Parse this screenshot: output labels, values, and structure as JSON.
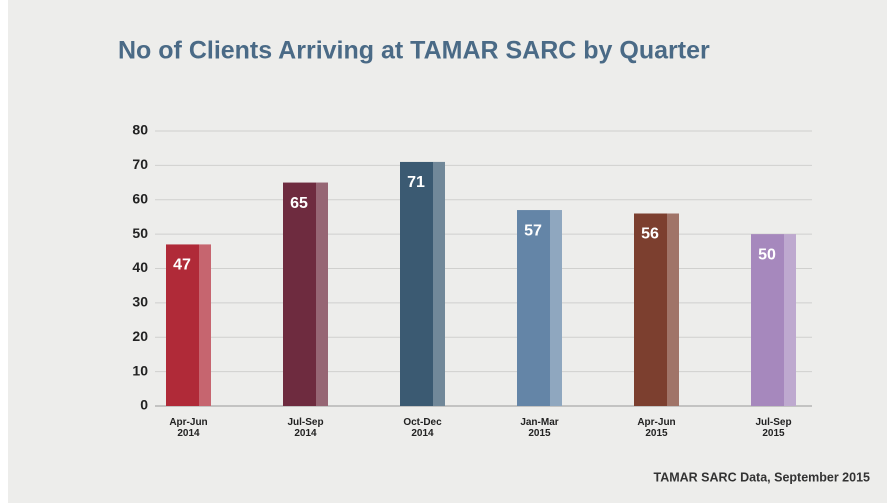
{
  "chart_data": {
    "type": "bar",
    "title": "No of Clients Arriving at TAMAR SARC by Quarter",
    "categories": [
      "Apr-Jun 2014",
      "Jul-Sep 2014",
      "Oct-Dec 2014",
      "Jan-Mar 2015",
      "Apr-Jun 2015",
      "Jul-Sep 2015"
    ],
    "values": [
      47,
      65,
      71,
      57,
      56,
      50
    ],
    "colors": [
      "#b02a38",
      "#6e2b3f",
      "#3b5a72",
      "#6485a7",
      "#7c3f2f",
      "#a688bd"
    ],
    "ylim": [
      0,
      80
    ],
    "yticks": [
      0,
      10,
      20,
      30,
      40,
      50,
      60,
      70,
      80
    ],
    "grid": true,
    "source": "TAMAR SARC Data, September 2015"
  }
}
